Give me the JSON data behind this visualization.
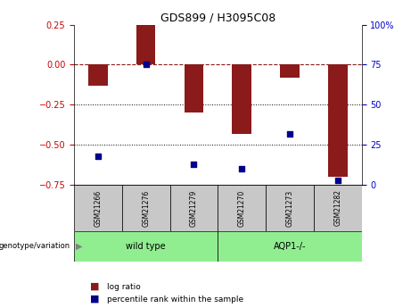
{
  "title": "GDS899 / H3095C08",
  "samples": [
    "GSM21266",
    "GSM21276",
    "GSM21279",
    "GSM21270",
    "GSM21273",
    "GSM21282"
  ],
  "log_ratios": [
    -0.13,
    0.25,
    -0.3,
    -0.43,
    -0.08,
    -0.7
  ],
  "percentile_ranks": [
    18,
    75,
    13,
    10,
    32,
    3
  ],
  "bar_color": "#8B1A1A",
  "dot_color": "#00008B",
  "left_ylim": [
    -0.75,
    0.25
  ],
  "right_ylim": [
    0,
    100
  ],
  "left_yticks": [
    -0.75,
    -0.5,
    -0.25,
    0,
    0.25
  ],
  "right_yticks": [
    0,
    25,
    50,
    75,
    100
  ],
  "dotted_lines": [
    -0.25,
    -0.5
  ],
  "background_color": "#ffffff",
  "left_tick_color": "#CC0000",
  "right_tick_color": "#0000CC",
  "gray_color": "#C8C8C8",
  "green_color": "#90EE90",
  "legend_items": [
    {
      "label": "log ratio",
      "color": "#8B1A1A"
    },
    {
      "label": "percentile rank within the sample",
      "color": "#00008B"
    }
  ],
  "wild_type_label": "wild type",
  "aqp_label": "AQP1-/-",
  "genotype_label": "genotype/variation"
}
